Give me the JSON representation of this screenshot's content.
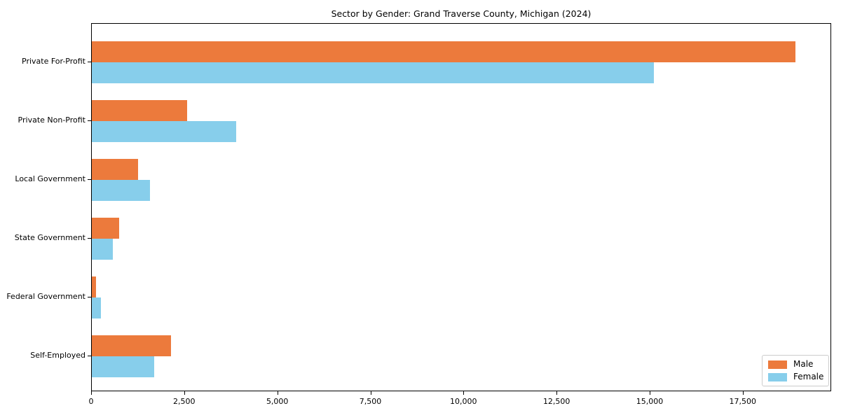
{
  "chart_data": {
    "type": "bar",
    "orientation": "horizontal",
    "title": "Sector by Gender: Grand Traverse County, Michigan (2024)",
    "categories": [
      "Private For-Profit",
      "Private Non-Profit",
      "Local Government",
      "State Government",
      "Federal Government",
      "Self-Employed"
    ],
    "series": [
      {
        "name": "Male",
        "color": "#EC7A3C",
        "values": [
          18900,
          2550,
          1240,
          730,
          110,
          2120
        ]
      },
      {
        "name": "Female",
        "color": "#87CEEB",
        "values": [
          15100,
          3880,
          1560,
          560,
          240,
          1670
        ]
      }
    ],
    "xlabel": "",
    "ylabel": "",
    "xlim": [
      0,
      19875
    ],
    "x_ticks": [
      0,
      2500,
      5000,
      7500,
      10000,
      12500,
      15000,
      17500
    ],
    "x_tick_labels": [
      "0",
      "2,500",
      "5,000",
      "7,500",
      "10,000",
      "12,500",
      "15,000",
      "17,500"
    ],
    "legend_position": "lower right",
    "grid": false,
    "frame": "full-box"
  }
}
